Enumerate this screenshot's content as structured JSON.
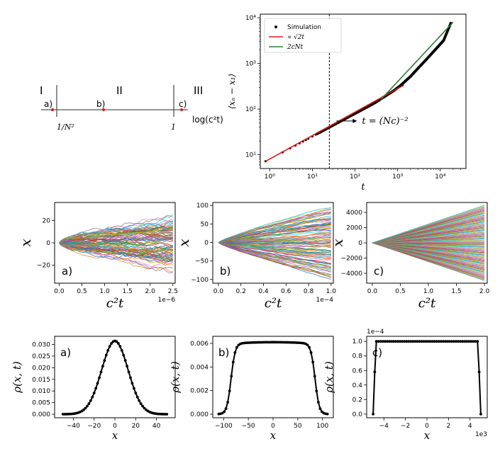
{
  "regimes": {
    "labels": [
      "I",
      "II",
      "III"
    ],
    "boundaries": [
      "1/N²",
      "1"
    ],
    "markers": [
      "a)",
      "b)",
      "c)"
    ],
    "axis_label": "log(c²t)"
  },
  "chart_data": [
    {
      "id": "loglog",
      "type": "line",
      "xscale": "log",
      "yscale": "log",
      "xlim": [
        0.6,
        40000
      ],
      "ylim": [
        5,
        12000
      ],
      "xticks": [
        1,
        10,
        100,
        1000,
        10000
      ],
      "xtick_labels": [
        "10⁰",
        "10¹",
        "10²",
        "10³",
        "10⁴"
      ],
      "yticks": [
        10,
        100,
        1000,
        10000
      ],
      "ytick_labels": [
        "10¹",
        "10²",
        "10³",
        "10⁴"
      ],
      "xlabel": "t",
      "ylabel": "⟨xₙ − x₁⟩",
      "vline_x": 25,
      "annotation": "t = (Nc)⁻²",
      "legend": [
        "Simulation",
        "∝ √2t",
        "2cNt"
      ],
      "series": [
        {
          "name": "Simulation",
          "color": "#000000",
          "x": [
            0.8,
            1,
            2,
            3,
            5,
            8,
            12,
            20,
            30,
            50,
            80,
            120,
            200,
            300,
            500,
            800,
            1200,
            2000,
            3000,
            5000,
            8000,
            12000,
            18000
          ],
          "y": [
            7.2,
            8,
            11.3,
            13.9,
            17.9,
            22.6,
            27.7,
            35.8,
            43.9,
            56.6,
            71.6,
            87.7,
            113,
            139,
            190,
            251,
            335,
            520,
            780,
            1300,
            2100,
            3200,
            8000
          ]
        },
        {
          "name": "∝ √2t",
          "color": "#e31a1c",
          "x": [
            0.8,
            1400
          ],
          "y": [
            7.2,
            334
          ]
        },
        {
          "name": "2cNt",
          "color": "#2e7d32",
          "x": [
            400,
            20000
          ],
          "y": [
            160,
            8000
          ]
        }
      ]
    },
    {
      "id": "traj_a",
      "type": "line",
      "xlim": [
        -0.1,
        2.55
      ],
      "ylim": [
        -36,
        36
      ],
      "xticks": [
        0.0,
        0.5,
        1.0,
        1.5,
        2.0,
        2.5
      ],
      "xtick_labels": [
        "0.0",
        "0.5",
        "1.0",
        "1.5",
        "2.0",
        "2.5"
      ],
      "yticks": [
        -20,
        0,
        20
      ],
      "ytick_labels": [
        "−20",
        "0",
        "20"
      ],
      "xlabel": "c²t",
      "ylabel": "x",
      "x_offset_label": "1e−6",
      "panel_label": "a)",
      "x_end": 2.5,
      "y_spread_end": 32,
      "profile": "sqrt"
    },
    {
      "id": "traj_b",
      "type": "line",
      "xlim": [
        -0.05,
        1.02
      ],
      "ylim": [
        -110,
        108
      ],
      "xticks": [
        0.0,
        0.2,
        0.4,
        0.6,
        0.8,
        1.0
      ],
      "xtick_labels": [
        "0.0",
        "0.2",
        "0.4",
        "0.6",
        "0.8",
        "1.0"
      ],
      "yticks": [
        -100,
        -50,
        0,
        50,
        100
      ],
      "ytick_labels": [
        "−100",
        "−50",
        "0",
        "50",
        "100"
      ],
      "xlabel": "c²t",
      "ylabel": "x",
      "x_offset_label": "1e−4",
      "panel_label": "b)",
      "x_end": 1.0,
      "y_spread_end": 100,
      "profile": "mixed"
    },
    {
      "id": "traj_c",
      "type": "line",
      "xlim": [
        -0.1,
        2.05
      ],
      "ylim": [
        -5300,
        5300
      ],
      "xticks": [
        0.0,
        0.5,
        1.0,
        1.5,
        2.0
      ],
      "xtick_labels": [
        "0.0",
        "0.5",
        "1.0",
        "1.5",
        "2.0"
      ],
      "yticks": [
        -4000,
        -2000,
        0,
        2000,
        4000
      ],
      "ytick_labels": [
        "−4000",
        "−2000",
        "0",
        "2000",
        "4000"
      ],
      "xlabel": "c²t",
      "ylabel": "x",
      "panel_label": "c)",
      "x_end": 2.0,
      "y_spread_end": 5000,
      "profile": "linear"
    },
    {
      "id": "dens_a",
      "type": "line",
      "xlim": [
        -58,
        58
      ],
      "ylim": [
        -0.0015,
        0.0335
      ],
      "xticks": [
        -40,
        -20,
        0,
        20,
        40
      ],
      "xtick_labels": [
        "−40",
        "−20",
        "0",
        "20",
        "40"
      ],
      "yticks": [
        0.0,
        0.005,
        0.01,
        0.015,
        0.02,
        0.025,
        0.03
      ],
      "ytick_labels": [
        "0.000",
        "0.005",
        "0.010",
        "0.015",
        "0.020",
        "0.025",
        "0.030"
      ],
      "xlabel": "x",
      "ylabel": "ρ(x, t)",
      "panel_label": "a)",
      "curve": {
        "kind": "gauss",
        "xmin": -50,
        "xmax": 50,
        "peak": 0.0315,
        "sigma": 12.7
      }
    },
    {
      "id": "dens_b",
      "type": "line",
      "xlim": [
        -122,
        122
      ],
      "ylim": [
        -0.0003,
        0.0066
      ],
      "xticks": [
        -100,
        -50,
        0,
        50,
        100
      ],
      "xtick_labels": [
        "−100",
        "−50",
        "0",
        "50",
        "100"
      ],
      "yticks": [
        0.0,
        0.002,
        0.004,
        0.006
      ],
      "ytick_labels": [
        "0.000",
        "0.002",
        "0.004",
        "0.006"
      ],
      "xlabel": "x",
      "ylabel": "ρ(x, t)",
      "panel_label": "b)",
      "curve": {
        "kind": "plateau",
        "xmin": -110,
        "xmax": 110,
        "peak": 0.0061,
        "edge": 85,
        "width": 12
      }
    },
    {
      "id": "dens_c",
      "type": "line",
      "xlim": [
        -5.6,
        5.6
      ],
      "ylim": [
        -0.05,
        1.07
      ],
      "xticks": [
        -4,
        -2,
        0,
        2,
        4
      ],
      "xtick_labels": [
        "−4",
        "−2",
        "0",
        "2",
        "4"
      ],
      "yticks": [
        0.0,
        0.2,
        0.4,
        0.6,
        0.8,
        1.0
      ],
      "ytick_labels": [
        "0.0",
        "0.2",
        "0.4",
        "0.6",
        "0.8",
        "1.0"
      ],
      "xlabel": "x",
      "ylabel": "ρ(x, t)",
      "x_offset_label": "1e3",
      "y_offset_label": "1e−4",
      "panel_label": "c)",
      "curve": {
        "kind": "box",
        "xmin": -5.0,
        "xmax": 5.0,
        "peak": 1.0
      }
    }
  ]
}
